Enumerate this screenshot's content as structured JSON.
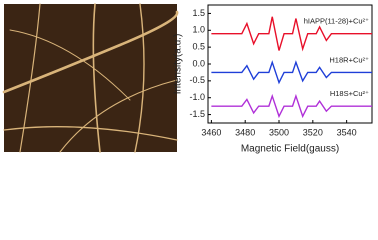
{
  "chart_data": {
    "type": "line",
    "xlabel": "Magnetic Field(gauss)",
    "ylabel": "Intensity(a.u.)",
    "x": [
      3460,
      3478,
      3481,
      3485,
      3488,
      3494,
      3496,
      3500,
      3503,
      3508,
      3510,
      3514,
      3517,
      3522,
      3524,
      3528,
      3531,
      3555
    ],
    "series": [
      {
        "name": "hIAPP(11-28)+Cu²⁺",
        "color": "#e8102a",
        "values": [
          0.9,
          0.9,
          1.2,
          0.6,
          0.9,
          0.9,
          1.4,
          0.4,
          0.9,
          0.9,
          1.35,
          0.45,
          0.9,
          0.9,
          1.1,
          0.7,
          0.9,
          0.9
        ]
      },
      {
        "name": "H18R+Cu²⁺",
        "color": "#1f3fd8",
        "values": [
          -0.25,
          -0.25,
          -0.05,
          -0.45,
          -0.25,
          -0.25,
          0.05,
          -0.55,
          -0.25,
          -0.25,
          0.05,
          -0.5,
          -0.25,
          -0.25,
          -0.1,
          -0.4,
          -0.25,
          -0.25
        ]
      },
      {
        "name": "H18S+Cu²⁺",
        "color": "#b030d8",
        "values": [
          -1.25,
          -1.25,
          -1.05,
          -1.45,
          -1.25,
          -1.25,
          -0.95,
          -1.55,
          -1.25,
          -1.25,
          -0.95,
          -1.55,
          -1.25,
          -1.25,
          -1.1,
          -1.4,
          -1.25,
          -1.25
        ]
      }
    ],
    "xlim": [
      3458,
      3555
    ],
    "xticks": [
      3460,
      3480,
      3500,
      3520,
      3540
    ],
    "ylim": [
      -1.75,
      1.75
    ],
    "yticks": [
      -1.5,
      {
        "value": -1,
        "label": "-1.0"
      },
      -0.5,
      {
        "value": 0,
        "label": "0.0"
      },
      0.5,
      {
        "value": 1,
        "label": "1.0"
      },
      1.5
    ]
  }
}
